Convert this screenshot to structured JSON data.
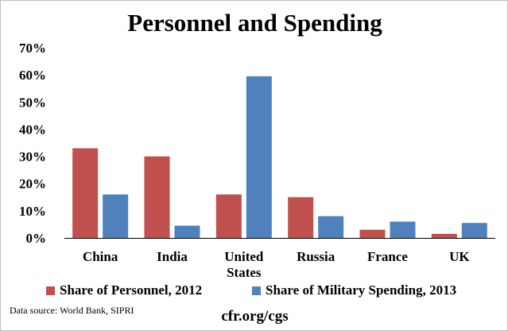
{
  "chart_data": {
    "type": "bar",
    "title": "Personnel and Spending",
    "categories": [
      [
        "China"
      ],
      [
        "India"
      ],
      [
        "United",
        "States"
      ],
      [
        "Russia"
      ],
      [
        "France"
      ],
      [
        "UK"
      ]
    ],
    "series": [
      {
        "name": "Share of Personnel, 2012",
        "color": "#c0504d",
        "values": [
          33,
          30,
          16,
          15,
          3,
          1.5
        ]
      },
      {
        "name": "Share of Military Spending, 2013",
        "color": "#4f81bd",
        "values": [
          16,
          4.5,
          59.5,
          8,
          6,
          5.5
        ]
      }
    ],
    "yticks": [
      "0%",
      "10%",
      "20%",
      "30%",
      "40%",
      "50%",
      "60%",
      "70%"
    ],
    "ylim": [
      0,
      70
    ],
    "grid": false,
    "legend": "bottom"
  },
  "source_note": "Data source: World Bank, SIPRI",
  "footer": "cfr.org/cgs"
}
